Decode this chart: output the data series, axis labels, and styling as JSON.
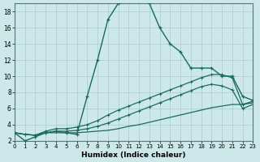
{
  "xlabel": "Humidex (Indice chaleur)",
  "bg_color": "#cce8e8",
  "line_color": "#1a6b5a",
  "grid_color": "#aacccc",
  "xlim": [
    0,
    23
  ],
  "ylim": [
    2,
    19
  ],
  "xticks": [
    0,
    1,
    2,
    3,
    4,
    5,
    6,
    7,
    8,
    9,
    10,
    11,
    12,
    13,
    14,
    15,
    16,
    17,
    18,
    19,
    20,
    21,
    22,
    23
  ],
  "yticks": [
    2,
    4,
    6,
    8,
    10,
    12,
    14,
    16,
    18
  ],
  "line1_x": [
    0,
    1,
    2,
    3,
    4,
    5,
    6,
    7,
    8,
    9,
    10,
    11,
    12,
    13,
    14,
    15,
    16,
    17,
    18,
    19,
    20,
    21,
    22,
    23
  ],
  "line1_y": [
    3,
    2,
    2.5,
    3,
    3.2,
    3,
    2.8,
    7.5,
    12,
    17,
    19,
    19.2,
    19.2,
    19,
    16,
    14,
    13,
    11,
    11,
    11,
    10,
    10,
    7.5,
    7
  ],
  "line2_x": [
    0,
    1,
    2,
    3,
    4,
    5,
    6,
    7,
    8,
    9,
    10,
    11,
    12,
    13,
    14,
    15,
    16,
    17,
    18,
    19,
    20,
    21,
    22,
    23
  ],
  "line2_y": [
    3,
    2.8,
    2.7,
    3.2,
    3.5,
    3.5,
    3.7,
    4.0,
    4.5,
    5.2,
    5.8,
    6.3,
    6.8,
    7.3,
    7.8,
    8.3,
    8.8,
    9.3,
    9.8,
    10.2,
    10.2,
    9.8,
    6.5,
    6.9
  ],
  "line3_x": [
    0,
    1,
    2,
    3,
    4,
    5,
    6,
    7,
    8,
    9,
    10,
    11,
    12,
    13,
    14,
    15,
    16,
    17,
    18,
    19,
    20,
    21,
    22,
    23
  ],
  "line3_y": [
    3,
    2.8,
    2.7,
    3.0,
    3.2,
    3.2,
    3.3,
    3.5,
    3.8,
    4.2,
    4.7,
    5.2,
    5.7,
    6.2,
    6.7,
    7.2,
    7.7,
    8.2,
    8.7,
    9.0,
    8.8,
    8.3,
    6.0,
    6.5
  ],
  "line4_x": [
    0,
    1,
    2,
    3,
    4,
    5,
    6,
    7,
    8,
    9,
    10,
    11,
    12,
    13,
    14,
    15,
    16,
    17,
    18,
    19,
    20,
    21,
    22,
    23
  ],
  "line4_y": [
    3,
    2.8,
    2.7,
    3.0,
    3.0,
    3.0,
    3.0,
    3.1,
    3.2,
    3.3,
    3.5,
    3.8,
    4.0,
    4.3,
    4.6,
    4.9,
    5.2,
    5.5,
    5.8,
    6.1,
    6.3,
    6.5,
    6.5,
    6.7
  ]
}
